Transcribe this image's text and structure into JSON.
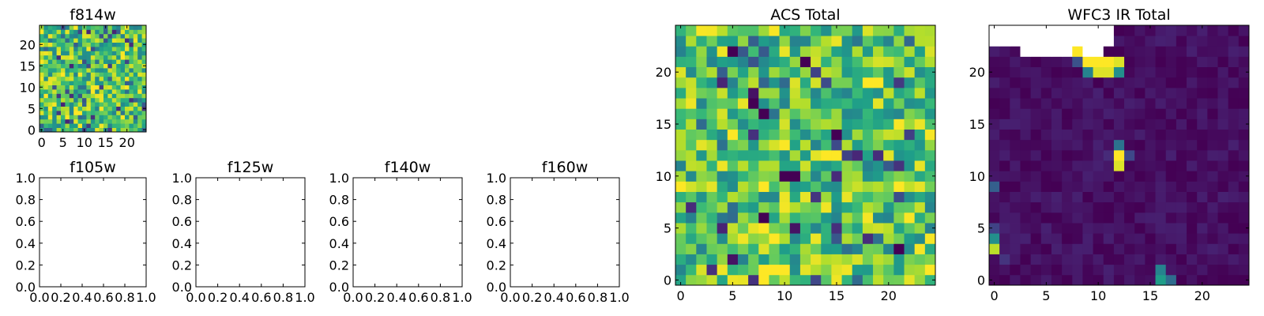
{
  "chart_data": [
    {
      "type": "heatmap",
      "title": "f814w",
      "colormap": "viridis",
      "grid_size": [
        25,
        25
      ],
      "xlim": [
        -0.5,
        24.5
      ],
      "ylim": [
        -0.5,
        24.5
      ],
      "xticks": [
        0,
        5,
        10,
        15,
        20
      ],
      "xtick_labels": [
        "0",
        "5",
        "10",
        "15",
        "20"
      ],
      "yticks": [
        0,
        5,
        10,
        15,
        20
      ],
      "ytick_labels": [
        "0",
        "5",
        "10",
        "15",
        "20"
      ],
      "value_range": [
        0,
        1
      ],
      "pattern": {
        "kind": "noise",
        "base": 0.72,
        "spread": 0.28,
        "seed": 11,
        "low_frac": 0.1,
        "hot": [
          {
            "x": 8,
            "y": 4,
            "v": 1
          },
          {
            "x": 9,
            "y": 4,
            "v": 1
          },
          {
            "x": 8,
            "y": 5,
            "v": 0.98
          },
          {
            "x": 9,
            "y": 1,
            "v": 1
          },
          {
            "x": 8,
            "y": 2,
            "v": 0.96
          }
        ]
      }
    },
    {
      "type": "heatmap",
      "title": "f105w",
      "empty": true,
      "xlim": [
        0,
        1
      ],
      "ylim": [
        0,
        1
      ],
      "xticks": [
        0,
        0.2,
        0.4,
        0.6,
        0.8,
        1.0
      ],
      "xtick_labels": [
        "0.0",
        "0.2",
        "0.4",
        "0.6",
        "0.8",
        "1.0"
      ],
      "yticks": [
        0,
        0.2,
        0.4,
        0.6,
        0.8,
        1.0
      ],
      "ytick_labels": [
        "0.0",
        "0.2",
        "0.4",
        "0.6",
        "0.8",
        "1.0"
      ]
    },
    {
      "type": "heatmap",
      "title": "f125w",
      "empty": true,
      "xlim": [
        0,
        1
      ],
      "ylim": [
        0,
        1
      ],
      "xticks": [
        0,
        0.2,
        0.4,
        0.6,
        0.8,
        1.0
      ],
      "xtick_labels": [
        "0.0",
        "0.2",
        "0.4",
        "0.6",
        "0.8",
        "1.0"
      ],
      "yticks": [
        0,
        0.2,
        0.4,
        0.6,
        0.8,
        1.0
      ],
      "ytick_labels": [
        "0.0",
        "0.2",
        "0.4",
        "0.6",
        "0.8",
        "1.0"
      ]
    },
    {
      "type": "heatmap",
      "title": "f140w",
      "empty": true,
      "xlim": [
        0,
        1
      ],
      "ylim": [
        0,
        1
      ],
      "xticks": [
        0,
        0.2,
        0.4,
        0.6,
        0.8,
        1.0
      ],
      "xtick_labels": [
        "0.0",
        "0.2",
        "0.4",
        "0.6",
        "0.8",
        "1.0"
      ],
      "yticks": [
        0,
        0.2,
        0.4,
        0.6,
        0.8,
        1.0
      ],
      "ytick_labels": [
        "0.0",
        "0.2",
        "0.4",
        "0.6",
        "0.8",
        "1.0"
      ]
    },
    {
      "type": "heatmap",
      "title": "f160w",
      "empty": true,
      "xlim": [
        0,
        1
      ],
      "ylim": [
        0,
        1
      ],
      "xticks": [
        0,
        0.2,
        0.4,
        0.6,
        0.8,
        1.0
      ],
      "xtick_labels": [
        "0.0",
        "0.2",
        "0.4",
        "0.6",
        "0.8",
        "1.0"
      ],
      "yticks": [
        0,
        0.2,
        0.4,
        0.6,
        0.8,
        1.0
      ],
      "ytick_labels": [
        "0.0",
        "0.2",
        "0.4",
        "0.6",
        "0.8",
        "1.0"
      ]
    },
    {
      "type": "heatmap",
      "title": "ACS Total",
      "colormap": "viridis",
      "grid_size": [
        25,
        25
      ],
      "xlim": [
        -0.5,
        24.5
      ],
      "ylim": [
        -0.5,
        24.5
      ],
      "xticks": [
        0,
        5,
        10,
        15,
        20
      ],
      "xtick_labels": [
        "0",
        "5",
        "10",
        "15",
        "20"
      ],
      "yticks": [
        0,
        5,
        10,
        15,
        20
      ],
      "ytick_labels": [
        "0",
        "5",
        "10",
        "15",
        "20"
      ],
      "value_range": [
        0,
        1
      ],
      "pattern": {
        "kind": "noise",
        "base": 0.72,
        "spread": 0.28,
        "seed": 29,
        "low_frac": 0.06,
        "hot": [
          {
            "x": 8,
            "y": 1,
            "v": 1
          },
          {
            "x": 9,
            "y": 1,
            "v": 1
          },
          {
            "x": 10,
            "y": 1,
            "v": 1
          },
          {
            "x": 8,
            "y": 0,
            "v": 1
          },
          {
            "x": 9,
            "y": 4,
            "v": 1
          },
          {
            "x": 8,
            "y": 5,
            "v": 1
          },
          {
            "x": 8,
            "y": 9,
            "v": 1
          },
          {
            "x": 18,
            "y": 19,
            "v": 1
          },
          {
            "x": 19,
            "y": 19,
            "v": 1
          },
          {
            "x": 5,
            "y": 14,
            "v": 1
          },
          {
            "x": 14,
            "y": 12,
            "v": 1
          },
          {
            "x": 15,
            "y": 12,
            "v": 1
          },
          {
            "x": 24,
            "y": 1,
            "v": 1
          },
          {
            "x": 0,
            "y": 9,
            "v": 1
          }
        ],
        "cold": [
          {
            "x": 5,
            "y": 22,
            "v": 0
          },
          {
            "x": 12,
            "y": 21,
            "v": 0
          },
          {
            "x": 8,
            "y": 16,
            "v": 0
          },
          {
            "x": 7,
            "y": 17,
            "v": 0
          },
          {
            "x": 15,
            "y": 14,
            "v": 0
          },
          {
            "x": 10,
            "y": 10,
            "v": 0
          },
          {
            "x": 11,
            "y": 10,
            "v": 0
          },
          {
            "x": 11,
            "y": 5,
            "v": 0.05
          },
          {
            "x": 8,
            "y": 6,
            "v": 0
          },
          {
            "x": 7,
            "y": 18,
            "v": 0.05
          },
          {
            "x": 21,
            "y": 3,
            "v": 0
          },
          {
            "x": 5,
            "y": 2,
            "v": 0.05
          }
        ]
      }
    },
    {
      "type": "heatmap",
      "title": "WFC3 IR Total",
      "colormap": "viridis",
      "grid_size": [
        25,
        25
      ],
      "xlim": [
        -0.5,
        24.5
      ],
      "ylim": [
        -0.5,
        24.5
      ],
      "xticks": [
        0,
        5,
        10,
        15,
        20
      ],
      "xtick_labels": [
        "0",
        "5",
        "10",
        "15",
        "20"
      ],
      "yticks": [
        0,
        5,
        10,
        15,
        20
      ],
      "ytick_labels": [
        "0",
        "5",
        "10",
        "15",
        "20"
      ],
      "value_range": [
        0,
        1
      ],
      "pattern": {
        "kind": "noise",
        "base": 0.04,
        "spread": 0.05,
        "seed": 53,
        "low_frac": 0,
        "hot": [
          {
            "x": 8,
            "y": 22,
            "v": 1
          },
          {
            "x": 9,
            "y": 21,
            "v": 1
          },
          {
            "x": 10,
            "y": 21,
            "v": 1
          },
          {
            "x": 11,
            "y": 21,
            "v": 1
          },
          {
            "x": 12,
            "y": 21,
            "v": 0.95
          },
          {
            "x": 10,
            "y": 20,
            "v": 0.95
          },
          {
            "x": 11,
            "y": 20,
            "v": 0.95
          },
          {
            "x": 9,
            "y": 20,
            "v": 0.45
          },
          {
            "x": 12,
            "y": 20,
            "v": 0.5
          },
          {
            "x": 8,
            "y": 21,
            "v": 0.25
          },
          {
            "x": 12,
            "y": 12,
            "v": 1
          },
          {
            "x": 12,
            "y": 11,
            "v": 0.95
          },
          {
            "x": 12,
            "y": 13,
            "v": 0.38
          },
          {
            "x": 13,
            "y": 12,
            "v": 0.22
          },
          {
            "x": 11,
            "y": 12,
            "v": 0.12
          },
          {
            "x": 0,
            "y": 3,
            "v": 0.9
          },
          {
            "x": 0,
            "y": 4,
            "v": 0.5
          },
          {
            "x": 0,
            "y": 5,
            "v": 0.2
          },
          {
            "x": 0,
            "y": 9,
            "v": 0.3
          },
          {
            "x": 1,
            "y": 2,
            "v": 0.15
          },
          {
            "x": 16,
            "y": 0,
            "v": 0.55
          },
          {
            "x": 16,
            "y": 1,
            "v": 0.45
          },
          {
            "x": 17,
            "y": 0,
            "v": 0.35
          }
        ],
        "blank": [
          {
            "x": 0,
            "y": 23
          },
          {
            "x": 1,
            "y": 23
          },
          {
            "x": 0,
            "y": 24
          },
          {
            "x": 1,
            "y": 24
          },
          {
            "x": 2,
            "y": 24
          },
          {
            "x": 3,
            "y": 24
          },
          {
            "x": 4,
            "y": 24
          },
          {
            "x": 5,
            "y": 24
          },
          {
            "x": 6,
            "y": 24
          },
          {
            "x": 7,
            "y": 24
          },
          {
            "x": 8,
            "y": 24
          },
          {
            "x": 9,
            "y": 24
          },
          {
            "x": 10,
            "y": 24
          },
          {
            "x": 11,
            "y": 24
          },
          {
            "x": 2,
            "y": 23
          },
          {
            "x": 3,
            "y": 23
          },
          {
            "x": 4,
            "y": 23
          },
          {
            "x": 5,
            "y": 23
          },
          {
            "x": 6,
            "y": 23
          },
          {
            "x": 7,
            "y": 23
          },
          {
            "x": 8,
            "y": 23
          },
          {
            "x": 9,
            "y": 23
          },
          {
            "x": 10,
            "y": 23
          },
          {
            "x": 11,
            "y": 23
          },
          {
            "x": 3,
            "y": 22
          },
          {
            "x": 4,
            "y": 22
          },
          {
            "x": 5,
            "y": 22
          },
          {
            "x": 6,
            "y": 22
          },
          {
            "x": 7,
            "y": 22
          },
          {
            "x": 9,
            "y": 22
          },
          {
            "x": 10,
            "y": 22
          }
        ]
      }
    }
  ]
}
